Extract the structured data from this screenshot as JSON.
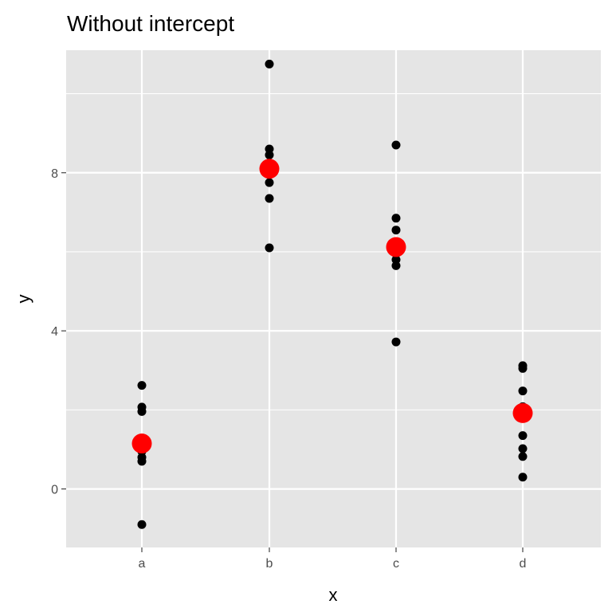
{
  "chart_data": {
    "type": "scatter",
    "title": "Without intercept",
    "xlabel": "x",
    "ylabel": "y",
    "categories": [
      "a",
      "b",
      "c",
      "d"
    ],
    "ylim": [
      -1.48,
      11.1
    ],
    "yticks": [
      0,
      4,
      8
    ],
    "grid": true,
    "legend": "none",
    "colors": {
      "panel_background": "#e5e5e5",
      "grid_line": "#ffffff",
      "point": "#000000",
      "group_mean": "#ff0000"
    },
    "series": [
      {
        "values": [
          {
            "x": "a",
            "y": 2.62
          },
          {
            "x": "a",
            "y": 2.07
          },
          {
            "x": "a",
            "y": 1.96
          },
          {
            "x": "a",
            "y": 1.12
          },
          {
            "x": "a",
            "y": 0.95
          },
          {
            "x": "a",
            "y": 0.8
          },
          {
            "x": "a",
            "y": 0.7
          },
          {
            "x": "a",
            "y": -0.9
          },
          {
            "x": "b",
            "y": 10.75
          },
          {
            "x": "b",
            "y": 8.6
          },
          {
            "x": "b",
            "y": 8.45
          },
          {
            "x": "b",
            "y": 8.2
          },
          {
            "x": "b",
            "y": 8.05
          },
          {
            "x": "b",
            "y": 7.75
          },
          {
            "x": "b",
            "y": 7.35
          },
          {
            "x": "b",
            "y": 6.1
          },
          {
            "x": "c",
            "y": 8.7
          },
          {
            "x": "c",
            "y": 6.85
          },
          {
            "x": "c",
            "y": 6.55
          },
          {
            "x": "c",
            "y": 6.15
          },
          {
            "x": "c",
            "y": 5.95
          },
          {
            "x": "c",
            "y": 5.8
          },
          {
            "x": "c",
            "y": 5.65
          },
          {
            "x": "c",
            "y": 3.72
          },
          {
            "x": "d",
            "y": 3.12
          },
          {
            "x": "d",
            "y": 3.05
          },
          {
            "x": "d",
            "y": 2.48
          },
          {
            "x": "d",
            "y": 2.08
          },
          {
            "x": "d",
            "y": 1.95
          },
          {
            "x": "d",
            "y": 1.35
          },
          {
            "x": "d",
            "y": 1.02
          },
          {
            "x": "d",
            "y": 0.82
          },
          {
            "x": "d",
            "y": 0.3
          }
        ]
      },
      {
        "values": [
          {
            "x": "a",
            "y": 1.15
          },
          {
            "x": "b",
            "y": 8.1
          },
          {
            "x": "c",
            "y": 6.12
          },
          {
            "x": "d",
            "y": 1.92
          }
        ]
      }
    ]
  }
}
